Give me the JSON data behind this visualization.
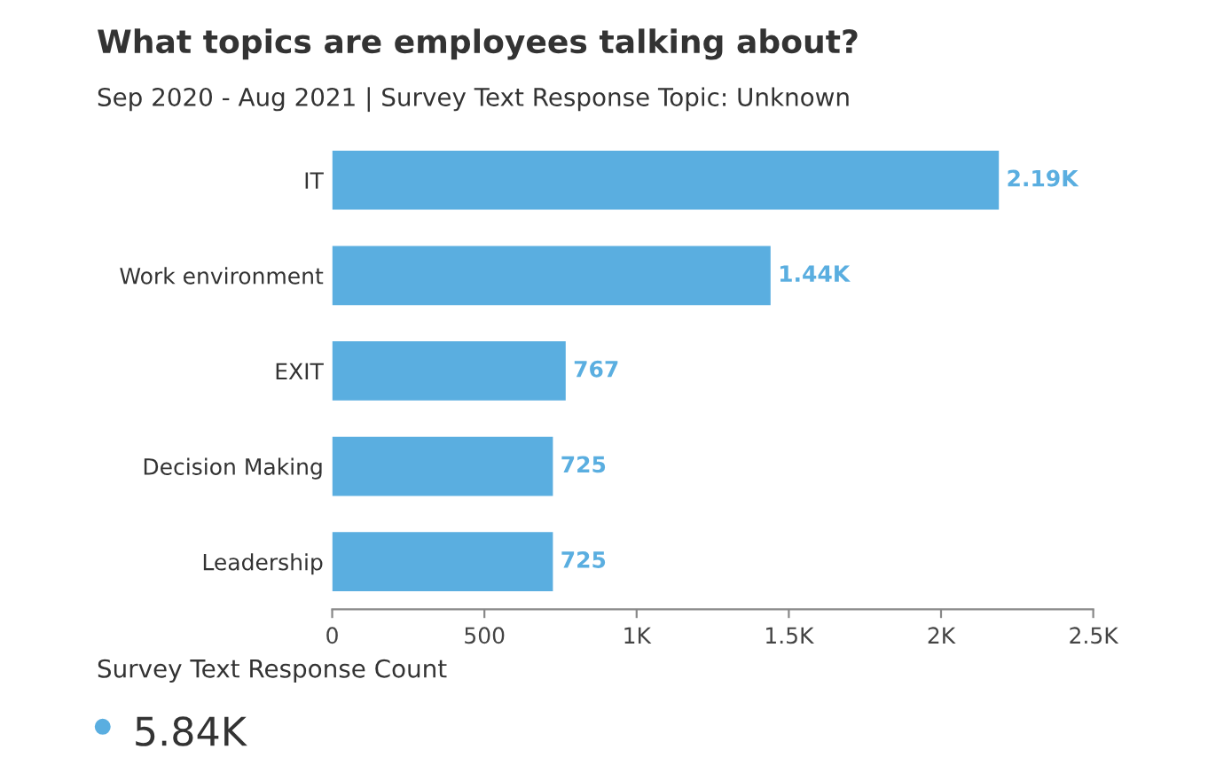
{
  "chart_data": {
    "type": "bar",
    "orientation": "horizontal",
    "title": "What topics are employees talking about?",
    "subtitle": "Sep 2020 - Aug 2021 | Survey Text Response Topic: Unknown",
    "categories": [
      "IT",
      "Work environment",
      "EXIT",
      "Decision Making",
      "Leadership"
    ],
    "values": [
      2190,
      1440,
      767,
      725,
      725
    ],
    "value_labels": [
      "2.19K",
      "1.44K",
      "767",
      "725",
      "725"
    ],
    "color": "#5aaee0",
    "xlim": [
      0,
      2500
    ],
    "xticks": [
      0,
      500,
      {
        "value": 1000,
        "label": "1K"
      },
      {
        "value": 1500,
        "label": "1.5K"
      },
      {
        "value": 2000,
        "label": "2K"
      },
      {
        "value": 2500,
        "label": "2.5K"
      }
    ],
    "grid": false,
    "legend": false,
    "annotations": [
      "Survey Text Response Count",
      "5.84K"
    ]
  }
}
